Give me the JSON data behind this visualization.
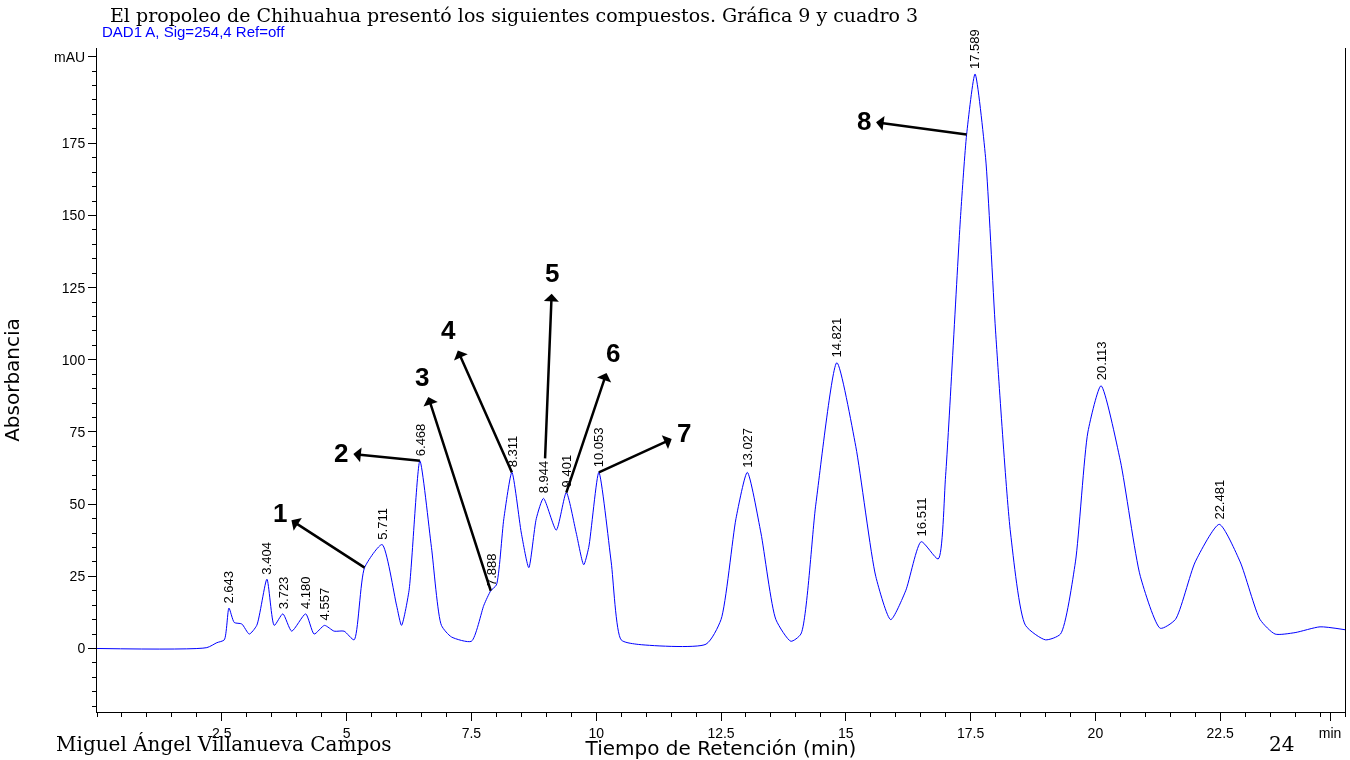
{
  "chart_data": {
    "type": "line",
    "title": "DAD1 A, Sig=254,4 Ref=off",
    "xlabel": "Tiempo de Retención (min)",
    "ylabel": "Absorbancia",
    "x": [
      0,
      2.2,
      2.4,
      2.55,
      2.643,
      2.75,
      2.9,
      3.05,
      3.2,
      3.404,
      3.55,
      3.723,
      3.9,
      4.18,
      4.35,
      4.557,
      4.75,
      4.95,
      5.15,
      5.36,
      5.711,
      6.0,
      6.1,
      6.25,
      6.468,
      6.7,
      6.9,
      7.1,
      7.5,
      7.75,
      7.888,
      8.0,
      8.15,
      8.311,
      8.5,
      8.65,
      8.8,
      8.944,
      9.2,
      9.401,
      9.6,
      9.75,
      9.85,
      10.053,
      10.3,
      10.5,
      10.8,
      12.2,
      12.5,
      12.8,
      13.027,
      13.3,
      13.6,
      13.9,
      14.1,
      14.4,
      14.821,
      15.2,
      15.6,
      15.9,
      16.2,
      16.511,
      16.85,
      17.0,
      17.3,
      17.42,
      17.589,
      17.8,
      18.0,
      18.3,
      18.6,
      19.0,
      19.3,
      19.6,
      19.85,
      20.113,
      20.5,
      20.9,
      21.3,
      21.6,
      22.0,
      22.481,
      22.9,
      23.3,
      23.6,
      24.0,
      24.5,
      25
    ],
    "series": [
      {
        "color": "#0000ff",
        "values": [
          0,
          0.3,
          2,
          3,
          14,
          9,
          8.5,
          5,
          8,
          24,
          8,
          12,
          6,
          12,
          5,
          8,
          6,
          6,
          3,
          28,
          36,
          15,
          8,
          20,
          65,
          35,
          8,
          4,
          2.5,
          15,
          20,
          22,
          45,
          61,
          40,
          28,
          45,
          52,
          41,
          54,
          40,
          29,
          35,
          61,
          30,
          3,
          1.5,
          1.5,
          10,
          45,
          61,
          40,
          10,
          2.5,
          5,
          50,
          99,
          70,
          25,
          10,
          20,
          37,
          31,
          60,
          150,
          178,
          199,
          170,
          110,
          40,
          8,
          3,
          5,
          30,
          75,
          91,
          65,
          25,
          7,
          10,
          30,
          43,
          30,
          10,
          5,
          5.5,
          7.5,
          6.5
        ]
      }
    ],
    "xlim": [
      0,
      25
    ],
    "xticks": [
      2.5,
      5,
      7.5,
      10,
      12.5,
      15,
      17.5,
      20,
      22.5,
      {
        "value": 24.7,
        "label": "min"
      }
    ],
    "ylim": [
      -22,
      208
    ],
    "yticks": [
      0,
      25,
      50,
      75,
      100,
      125,
      150,
      175,
      {
        "value": 205,
        "label": "mAU"
      }
    ],
    "grid": false,
    "marker": "none",
    "line_style": "solid",
    "annotations": [
      "El propoleo de Chihuahua presentó los siguientes compuestos. Gráfica 9 y cuadro 3",
      "Miguel Ángel Villanueva Campos",
      "24",
      {
        "text": "1",
        "x": 5.36,
        "y": 28
      },
      {
        "text": "2",
        "x": 6.468,
        "y": 65
      },
      {
        "text": "3",
        "x": 7.888,
        "y": 20
      },
      {
        "text": "4",
        "x": 8.311,
        "y": 61
      },
      {
        "text": "5",
        "x": 8.944,
        "y": 52
      },
      {
        "text": "6",
        "x": 9.401,
        "y": 54
      },
      {
        "text": "7",
        "x": 10.053,
        "y": 61
      },
      {
        "text": "8",
        "x": 17.42,
        "y": 178
      },
      {
        "text": "2.643",
        "x": 2.643,
        "y": 14
      },
      {
        "text": "3.404",
        "x": 3.404,
        "y": 24
      },
      {
        "text": "3.723",
        "x": 3.723,
        "y": 12
      },
      {
        "text": "4.180",
        "x": 4.18,
        "y": 12
      },
      {
        "text": "4.557",
        "x": 4.557,
        "y": 8
      },
      {
        "text": "5.711",
        "x": 5.711,
        "y": 36
      },
      {
        "text": "6.468",
        "x": 6.468,
        "y": 65
      },
      {
        "text": "7.888",
        "x": 7.888,
        "y": 20
      },
      {
        "text": "8.311",
        "x": 8.311,
        "y": 61
      },
      {
        "text": "8.944",
        "x": 8.944,
        "y": 52
      },
      {
        "text": "9.401",
        "x": 9.401,
        "y": 54
      },
      {
        "text": "10.053",
        "x": 10.053,
        "y": 61
      },
      {
        "text": "13.027",
        "x": 13.027,
        "y": 61
      },
      {
        "text": "14.821",
        "x": 14.821,
        "y": 99
      },
      {
        "text": "16.511",
        "x": 16.511,
        "y": 37
      },
      {
        "text": "17.589",
        "x": 17.589,
        "y": 199
      },
      {
        "text": "20.113",
        "x": 20.113,
        "y": 91
      },
      {
        "text": "22.481",
        "x": 22.481,
        "y": 43
      }
    ]
  }
}
